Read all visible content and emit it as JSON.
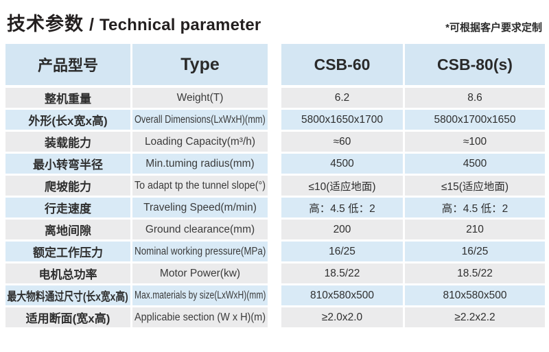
{
  "page": {
    "title": {
      "cn": "技术参数",
      "sep": "/",
      "en": "Technical parameter"
    },
    "note": "*可根据客户要求定制"
  },
  "colors": {
    "header_bg": "#d4e6f3",
    "row_blue": "#d9eaf6",
    "row_gray": "#ebebec",
    "accent_text": "#231f1f"
  },
  "table": {
    "headers": {
      "product_model": "产品型号",
      "type": "Type",
      "model1": "CSB-60",
      "model2": "CSB-80(s)"
    },
    "rows": [
      {
        "cn": "整机重量",
        "en": "Weight(T)",
        "v1": "6.2",
        "v2": "8.6"
      },
      {
        "cn": "外形(长x宽x高)",
        "en": "Overall Dimensions(LxWxH)(mm)",
        "v1": "5800x1650x1700",
        "v2": "5800x1700x1650"
      },
      {
        "cn": "装载能力",
        "en": "Loading Capacity(m³/h)",
        "v1": "≈60",
        "v2": "≈100"
      },
      {
        "cn": "最小转弯半径",
        "en": "Min.tuming radius(mm)",
        "v1": "4500",
        "v2": "4500"
      },
      {
        "cn": "爬坡能力",
        "en": "To adapt tp the tunnel slope(°)",
        "v1": "≤10(适应地面)",
        "v2": "≤15(适应地面)"
      },
      {
        "cn": "行走速度",
        "en": "Traveling Speed(m/min)",
        "v1": "高：4.5 低：2",
        "v2": "高：4.5 低：2"
      },
      {
        "cn": "离地间隙",
        "en": "Ground clearance(mm)",
        "v1": "200",
        "v2": "210"
      },
      {
        "cn": "额定工作压力",
        "en": "Nominal working pressure(MPa)",
        "v1": "16/25",
        "v2": "16/25"
      },
      {
        "cn": "电机总功率",
        "en": "Motor Power(kw)",
        "v1": "18.5/22",
        "v2": "18.5/22"
      },
      {
        "cn": "最大物料通过尺寸(长x宽x高)",
        "en": "Max.materials by size(LxWxH)(mm)",
        "v1": "810x580x500",
        "v2": "810x580x500"
      },
      {
        "cn": "适用断面(宽x高)",
        "en": "Applicabie section (W x H)(m)",
        "v1": "≥2.0x2.0",
        "v2": "≥2.2x2.2"
      }
    ]
  }
}
